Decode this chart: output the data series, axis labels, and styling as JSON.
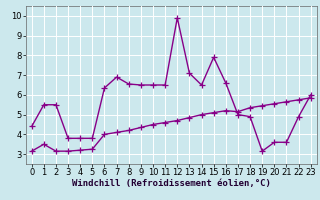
{
  "xlabel": "Windchill (Refroidissement éolien,°C)",
  "background_color": "#cce8ed",
  "grid_color": "#ffffff",
  "line_color": "#880088",
  "xlim": [
    -0.5,
    23.5
  ],
  "ylim": [
    2.5,
    10.5
  ],
  "xticks": [
    0,
    1,
    2,
    3,
    4,
    5,
    6,
    7,
    8,
    9,
    10,
    11,
    12,
    13,
    14,
    15,
    16,
    17,
    18,
    19,
    20,
    21,
    22,
    23
  ],
  "yticks": [
    3,
    4,
    5,
    6,
    7,
    8,
    9,
    10
  ],
  "series1_x": [
    0,
    1,
    2,
    3,
    4,
    5,
    6,
    7,
    8,
    9,
    10,
    11,
    12,
    13,
    14,
    15,
    16,
    17,
    18,
    19,
    20,
    21,
    22,
    23
  ],
  "series1_y": [
    4.4,
    5.5,
    5.5,
    3.8,
    3.8,
    3.8,
    6.35,
    6.9,
    6.55,
    6.5,
    6.5,
    6.5,
    9.9,
    7.1,
    6.5,
    7.9,
    6.6,
    5.0,
    4.9,
    3.15,
    3.6,
    3.6,
    4.9,
    6.0
  ],
  "series2_x": [
    0,
    1,
    2,
    3,
    4,
    5,
    6,
    7,
    8,
    9,
    10,
    11,
    12,
    13,
    14,
    15,
    16,
    17,
    18,
    19,
    20,
    21,
    22,
    23
  ],
  "series2_y": [
    3.15,
    3.5,
    3.15,
    3.15,
    3.2,
    3.25,
    4.0,
    4.1,
    4.2,
    4.35,
    4.5,
    4.6,
    4.7,
    4.85,
    5.0,
    5.1,
    5.2,
    5.15,
    5.35,
    5.45,
    5.55,
    5.65,
    5.75,
    5.85
  ],
  "marker": "+",
  "markersize": 4,
  "linewidth": 1.0,
  "xlabel_fontsize": 6.5,
  "tick_fontsize": 6.0
}
